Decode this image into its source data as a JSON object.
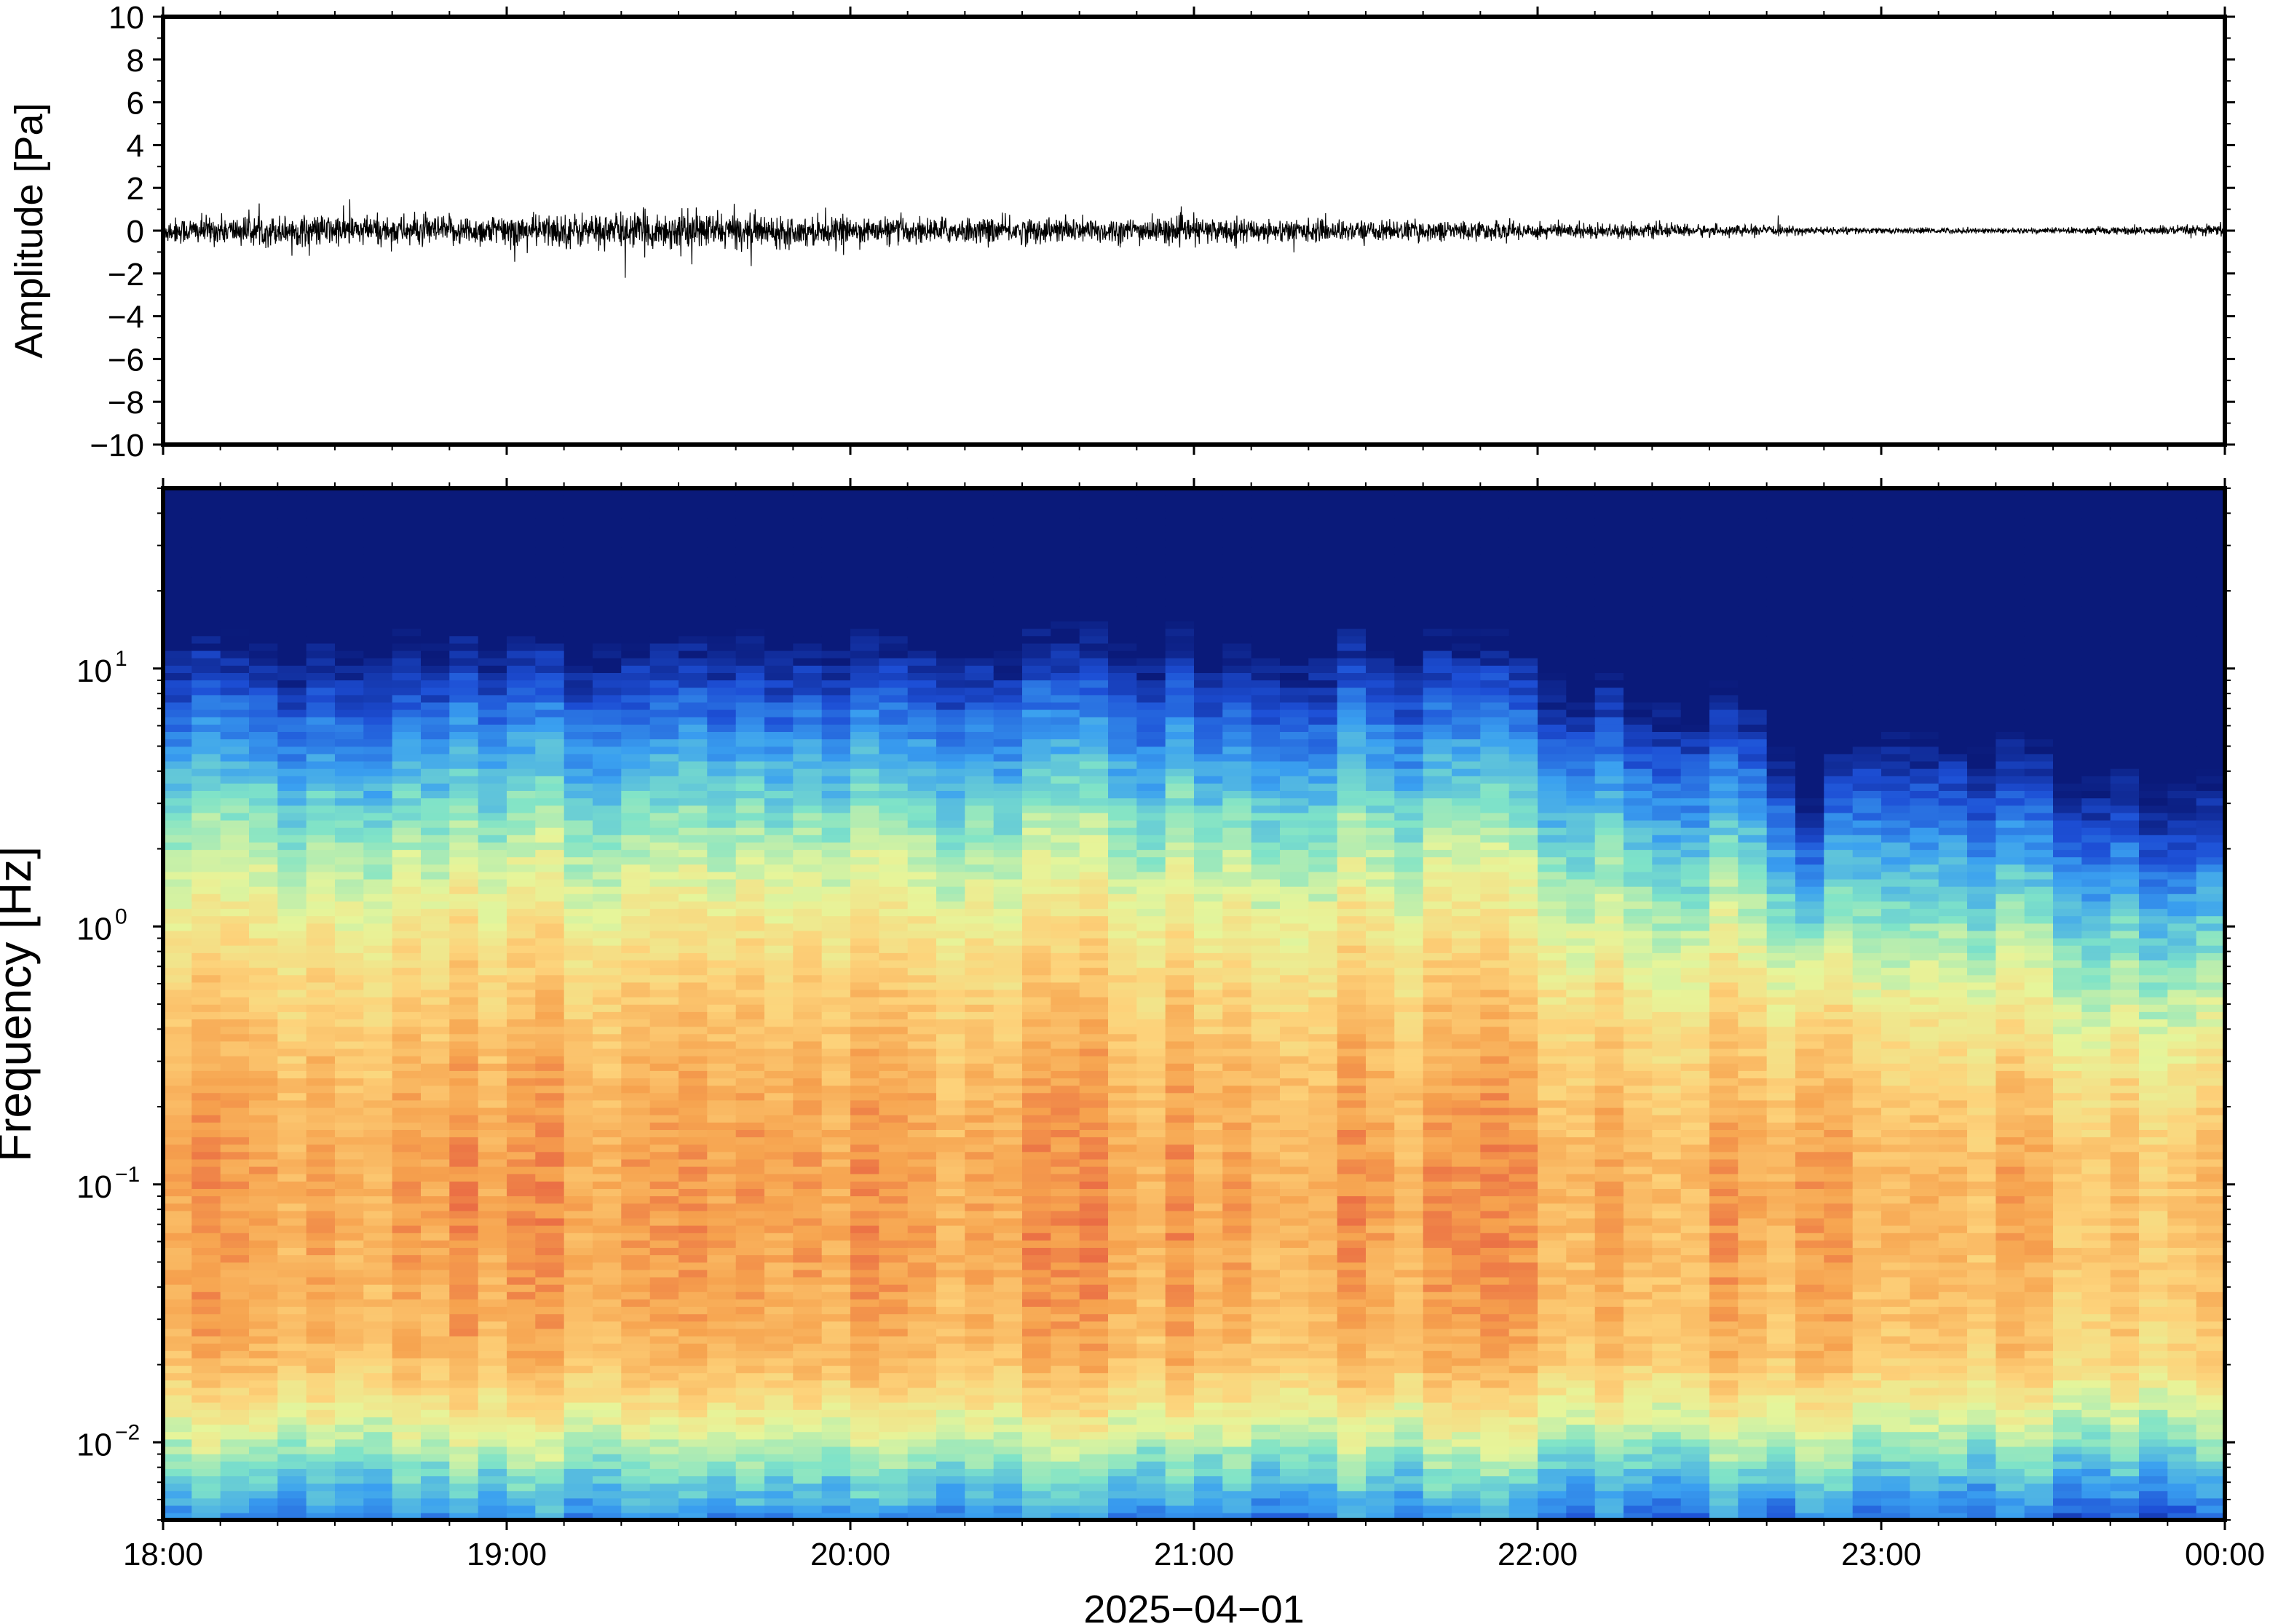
{
  "chart_data": [
    {
      "type": "line",
      "panel": "waveform",
      "ylabel": "Amplitude [Pa]",
      "ylim": [
        -10,
        10
      ],
      "yticks": [
        10,
        8,
        6,
        4,
        2,
        0,
        -2,
        -4,
        -6,
        -8,
        -10
      ],
      "ytick_labels": [
        "10",
        "8",
        "6",
        "4",
        "2",
        "0",
        "−2",
        "−4",
        "−6",
        "−8",
        "−10"
      ],
      "series": [
        {
          "line_color": "#000000",
          "envelope": {
            "x": [
              "18:00",
              "18:15",
              "18:30",
              "18:45",
              "19:00",
              "19:15",
              "19:30",
              "19:45",
              "20:00",
              "20:15",
              "20:30",
              "20:45",
              "21:00",
              "21:15",
              "21:30",
              "21:45",
              "22:00",
              "22:15",
              "22:30",
              "22:45",
              "23:00",
              "23:15",
              "23:30",
              "23:45",
              "00:00"
            ],
            "amplitude_pa": [
              0.9,
              1.0,
              1.1,
              1.0,
              1.1,
              1.2,
              1.3,
              1.1,
              0.9,
              0.9,
              0.9,
              0.9,
              0.9,
              0.8,
              0.7,
              0.7,
              0.6,
              0.5,
              0.4,
              0.3,
              0.2,
              0.2,
              0.2,
              0.3,
              0.4
            ]
          }
        }
      ]
    },
    {
      "type": "heatmap",
      "panel": "spectrogram",
      "ylabel": "Frequency [Hz]",
      "yscale": "log",
      "ylim": [
        0.005,
        50
      ],
      "yticks": [
        {
          "base": "10",
          "exp": "1"
        },
        {
          "base": "10",
          "exp": "0"
        },
        {
          "base": "10",
          "exp": "−1"
        },
        {
          "base": "10",
          "exp": "−2"
        }
      ],
      "xlabel": "2025−04−01",
      "xlim": [
        "18:00",
        "00:00"
      ],
      "xtick_labels": [
        "18:00",
        "19:00",
        "20:00",
        "21:00",
        "22:00",
        "23:00",
        "00:00"
      ],
      "colormap": "spectral",
      "colormap_stops": [
        "#0a1a7a",
        "#1d4fd6",
        "#3aa0f0",
        "#7fe3c8",
        "#e6f59a",
        "#fdd27a",
        "#f6a24e",
        "#e34d3e"
      ]
    }
  ]
}
